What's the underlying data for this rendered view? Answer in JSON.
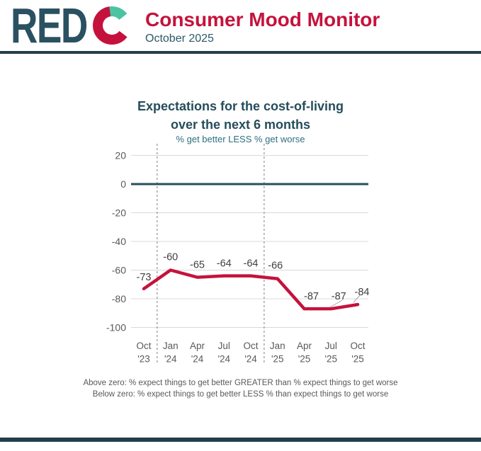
{
  "header": {
    "logo_text": "RED",
    "logo_mark": "C",
    "title": "Consumer Mood Monitor",
    "subtitle": "October 2025"
  },
  "chart_data": {
    "type": "line",
    "title": "Expectations for the cost-of-living over the next 6 months",
    "title_lines": [
      "Expectations for the cost-of-living",
      "over the next 6 months"
    ],
    "subtitle": "% get better LESS % get worse",
    "categories": [
      "Oct '23",
      "Jan '24",
      "Apr '24",
      "Jul '24",
      "Oct '24",
      "Jan '25",
      "Apr '25",
      "Jul '25",
      "Oct '25"
    ],
    "x_tick_lines": [
      [
        "Oct",
        "'23"
      ],
      [
        "Jan",
        "'24"
      ],
      [
        "Apr",
        "'24"
      ],
      [
        "Jul",
        "'24"
      ],
      [
        "Oct",
        "'24"
      ],
      [
        "Jan",
        "'25"
      ],
      [
        "Apr",
        "'25"
      ],
      [
        "Jul",
        "'25"
      ],
      [
        "Oct",
        "'25"
      ]
    ],
    "values": [
      -73,
      -60,
      -65,
      -64,
      -64,
      -66,
      -87,
      -87,
      -84
    ],
    "data_labels": [
      "-73",
      "-60",
      "-65",
      "-64",
      "-64",
      "-66",
      "-87",
      "-87",
      "-84"
    ],
    "ylim": [
      -100,
      20
    ],
    "yticks": [
      20,
      0,
      -20,
      -40,
      -60,
      -80,
      -100
    ],
    "grid": true,
    "zero_line": true,
    "year_separators_at": [
      0.5,
      4.5
    ],
    "legend": "none",
    "line_color": "#C5123C",
    "zero_line_color": "#274F5D",
    "grid_color": "#D9D9D9",
    "separator_color": "#7F7F7F"
  },
  "footer": {
    "line1": "Above zero: % expect things to get better GREATER than % expect things to get worse",
    "line2": "Below zero: % expect things to get better LESS % than expect things to get worse"
  },
  "colors": {
    "brand_teal_dark": "#2A5161",
    "brand_red": "#C5123C",
    "brand_mint": "#4CC3A3",
    "rule_dark": "#233E4B",
    "tick_gray": "#595959",
    "label_gray": "#3F3F3F"
  }
}
